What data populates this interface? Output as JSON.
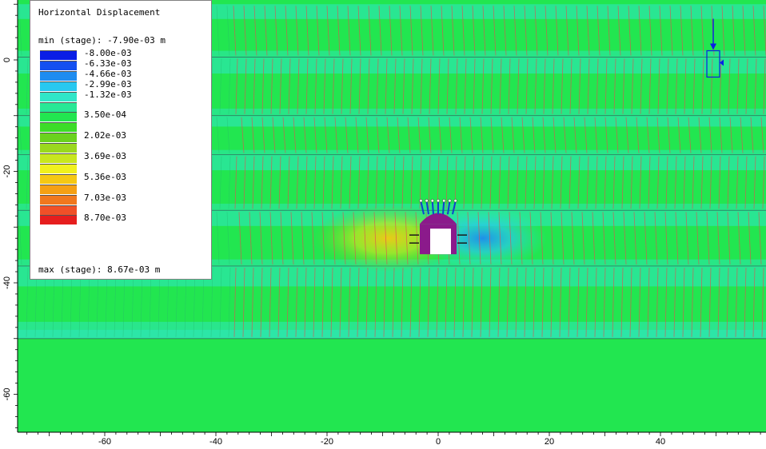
{
  "chart_data": {
    "type": "heatmap",
    "title": "Horizontal Displacement",
    "min_label": "min (stage): -7.90e-03 m",
    "max_label": "max (stage): 8.67e-03 m",
    "legend": [
      {
        "label": "-8.00e-03",
        "color": "#0a1ee6"
      },
      {
        "label": "-6.33e-03",
        "color": "#1450f0"
      },
      {
        "label": "-4.66e-03",
        "color": "#1e8cf0"
      },
      {
        "label": "-2.99e-03",
        "color": "#28c8f0"
      },
      {
        "label": "-1.32e-03",
        "color": "#30e6c8"
      },
      {
        "label": "",
        "color": "#28e896"
      },
      {
        "label": "3.50e-04",
        "color": "#22e650"
      },
      {
        "label": "",
        "color": "#3cdc28"
      },
      {
        "label": "2.02e-03",
        "color": "#6ad21e"
      },
      {
        "label": "",
        "color": "#9ad81e"
      },
      {
        "label": "3.69e-03",
        "color": "#c8e61e"
      },
      {
        "label": "",
        "color": "#f0f01e"
      },
      {
        "label": "5.36e-03",
        "color": "#f5c814"
      },
      {
        "label": "",
        "color": "#f5a014"
      },
      {
        "label": "7.03e-03",
        "color": "#f0781e"
      },
      {
        "label": "",
        "color": "#f05028"
      },
      {
        "label": "8.70e-03",
        "color": "#e61e1e"
      }
    ],
    "x_ticks": [
      -60,
      -40,
      -20,
      0,
      20,
      40
    ],
    "y_ticks": [
      0,
      -20,
      -40,
      -60
    ],
    "xlim": [
      -76,
      59
    ],
    "ylim": [
      -69,
      10
    ],
    "background_color": "#22e650",
    "layer_color": "#30e6c8",
    "joint_color": "#e05050",
    "boundary_color": "#303030",
    "tunnel_color": "#8b1a8b",
    "bolt_color": "#1040d0",
    "positive_zone_color": "#f5c814",
    "negative_zone_color": "#28c8f0",
    "strata": [
      {
        "y_top": 10,
        "y_bottom": 0.5
      },
      {
        "y_top": 0.5,
        "y_bottom": -10
      },
      {
        "y_top": -10,
        "y_bottom": -17
      },
      {
        "y_top": -17,
        "y_bottom": -27
      },
      {
        "y_top": -27,
        "y_bottom": -37
      },
      {
        "y_top": -37,
        "y_bottom": -50
      }
    ],
    "monitor_x": 49.5,
    "monitor_y": -0.5,
    "tunnel_center": [
      0,
      -32
    ]
  }
}
